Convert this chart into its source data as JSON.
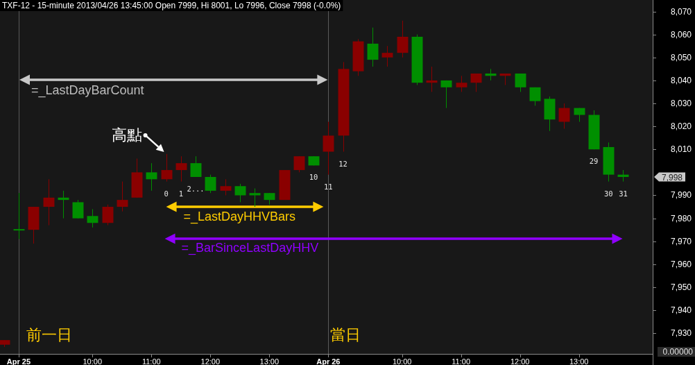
{
  "chart_data": {
    "type": "candlestick",
    "title": "TXF-12 - 15-minute 2013/04/26 13:45:00 Open 7999, Hi 8001, Lo 7996, Close 7998 (-0.0%)",
    "categories": [
      null,
      "Apr 25",
      null,
      null,
      null,
      null,
      "10:00",
      null,
      null,
      null,
      "11:00",
      null,
      null,
      null,
      "12:00",
      null,
      null,
      null,
      "13:00",
      null,
      null,
      null,
      "Apr 26",
      null,
      null,
      null,
      null,
      "10:00",
      null,
      null,
      null,
      "11:00",
      null,
      null,
      null,
      "12:00",
      null,
      null,
      null,
      "13:00",
      null,
      null,
      null
    ],
    "ohlc": [
      [
        7925,
        7927,
        7924,
        7927
      ],
      [
        7975,
        7991,
        7971,
        7975
      ],
      [
        7975,
        7985,
        7969,
        7985
      ],
      [
        7985,
        7997,
        7977,
        7989
      ],
      [
        7989,
        7992,
        7980,
        7988
      ],
      [
        7987,
        7988,
        7980,
        7980
      ],
      [
        7981,
        7984,
        7976,
        7978
      ],
      [
        7978,
        7986,
        7977,
        7985
      ],
      [
        7985,
        7996,
        7983,
        7988
      ],
      [
        7989,
        8006,
        7989,
        8000
      ],
      [
        8000,
        8004,
        7992,
        7997
      ],
      [
        7997,
        8008,
        7996,
        8001
      ],
      [
        8001,
        8007,
        7996,
        8004
      ],
      [
        8004,
        8007,
        7998,
        7998
      ],
      [
        7998,
        7999,
        7991,
        7992
      ],
      [
        7992,
        7997,
        7990,
        7994
      ],
      [
        7994,
        7995,
        7987,
        7990
      ],
      [
        7991,
        7993,
        7985,
        7990
      ],
      [
        7991,
        7991,
        7986,
        7988
      ],
      [
        7988,
        8001,
        7988,
        8001
      ],
      [
        8001,
        8007,
        8000,
        8007
      ],
      [
        8007,
        8007,
        8003,
        8003
      ],
      [
        8009,
        8022,
        7999,
        8016
      ],
      [
        8016,
        8048,
        8009,
        8045
      ],
      [
        8044,
        8058,
        8042,
        8057
      ],
      [
        8056,
        8063,
        8046,
        8049
      ],
      [
        8050,
        8055,
        8046,
        8052
      ],
      [
        8052,
        8066,
        8050,
        8059
      ],
      [
        8059,
        8060,
        8038,
        8039
      ],
      [
        8039,
        8046,
        8035,
        8040
      ],
      [
        8040,
        8040,
        8028,
        8037
      ],
      [
        8037,
        8042,
        8035,
        8039
      ],
      [
        8039,
        8043,
        8035,
        8043
      ],
      [
        8043,
        8045,
        8040,
        8042
      ],
      [
        8042,
        8043,
        8038,
        8043
      ],
      [
        8043,
        8043,
        8035,
        8037
      ],
      [
        8037,
        8037,
        8029,
        8031
      ],
      [
        8032,
        8033,
        8018,
        8023
      ],
      [
        8022,
        8030,
        8019,
        8028
      ],
      [
        8028,
        8028,
        8022,
        8025
      ],
      [
        8025,
        8027,
        8010,
        8010
      ],
      [
        8011,
        8013,
        7996,
        7999
      ],
      [
        7999,
        8001,
        7996,
        7998
      ]
    ],
    "colors": [
      "#8a0000",
      "#008f00",
      "#8a0000",
      "#8a0000",
      "#008f00",
      "#008f00",
      "#008f00",
      "#8a0000",
      "#8a0000",
      "#8a0000",
      "#008f00",
      "#8a0000",
      "#8a0000",
      "#008f00",
      "#008f00",
      "#8a0000",
      "#008f00",
      "#008f00",
      "#008f00",
      "#8a0000",
      "#8a0000",
      "#008f00",
      "#8a0000",
      "#8a0000",
      "#8a0000",
      "#008f00",
      "#8a0000",
      "#8a0000",
      "#008f00",
      "#8a0000",
      "#008f00",
      "#8a0000",
      "#8a0000",
      "#008f00",
      "#8a0000",
      "#008f00",
      "#008f00",
      "#008f00",
      "#8a0000",
      "#008f00",
      "#008f00",
      "#008f00",
      "#008f00"
    ],
    "value_labels": [
      null,
      null,
      null,
      null,
      null,
      null,
      null,
      null,
      null,
      null,
      null,
      "0",
      "1",
      "2...",
      null,
      null,
      null,
      null,
      null,
      null,
      null,
      "10",
      "11",
      "12",
      null,
      null,
      null,
      null,
      null,
      null,
      null,
      null,
      null,
      null,
      null,
      null,
      null,
      null,
      null,
      null,
      "29",
      "30",
      "31"
    ],
    "ylim": [
      7921,
      8075
    ],
    "yticks": [
      {
        "value": 7930,
        "label": "7,930"
      },
      {
        "value": 7940,
        "label": "7,940"
      },
      {
        "value": 7950,
        "label": "7,950"
      },
      {
        "value": 7960,
        "label": "7,960"
      },
      {
        "value": 7970,
        "label": "7,970"
      },
      {
        "value": 7980,
        "label": "7,980"
      },
      {
        "value": 7990,
        "label": "7,990"
      },
      {
        "value": 8010,
        "label": "8,010"
      },
      {
        "value": 8020,
        "label": "8,020"
      },
      {
        "value": 8030,
        "label": "8,030"
      },
      {
        "value": 8040,
        "label": "8,040"
      },
      {
        "value": 8050,
        "label": "8,050"
      },
      {
        "value": 8060,
        "label": "8,060"
      },
      {
        "value": 8070,
        "label": "8,070"
      }
    ],
    "ref_lines": [
      {
        "axis": "x",
        "value": "Apr 25",
        "color": "#5a5a5a"
      },
      {
        "axis": "x",
        "value": "Apr 26",
        "color": "#5a5a5a"
      }
    ],
    "annotations": [
      "高點",
      "=_LastDayBarCount",
      "=_LastDayHHVBars",
      "=_BarSinceLastDayHHV",
      "前一日",
      "當日",
      "7,998",
      "0.00000"
    ]
  }
}
